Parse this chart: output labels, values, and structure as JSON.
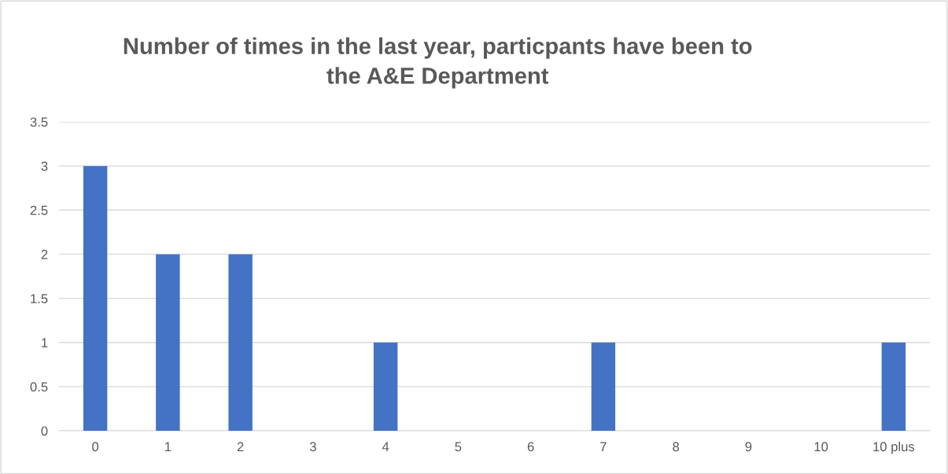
{
  "chart_data": {
    "type": "bar",
    "title": "Number of times in the last year, particpants have been to\nthe A&E Department",
    "categories": [
      "0",
      "1",
      "2",
      "3",
      "4",
      "5",
      "6",
      "7",
      "8",
      "9",
      "10",
      "10 plus"
    ],
    "values": [
      3,
      2,
      2,
      0,
      1,
      0,
      0,
      1,
      0,
      0,
      0,
      1
    ],
    "color": "#4472c4",
    "ylim": [
      0,
      3.5
    ],
    "yticks": [
      0,
      0.5,
      1,
      1.5,
      2,
      2.5,
      3,
      3.5
    ],
    "grid": "y",
    "legend": false
  }
}
